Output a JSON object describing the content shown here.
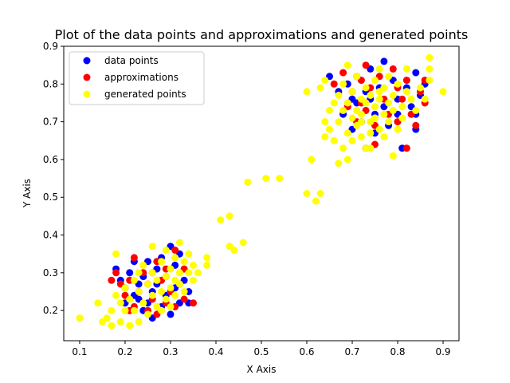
{
  "chart_data": {
    "type": "scatter",
    "title": "Plot of the data points and approximations and generated points",
    "xlabel": "X Axis",
    "ylabel": "Y Axis",
    "xlim": [
      0.065,
      0.935
    ],
    "ylim": [
      0.12,
      0.9
    ],
    "xticks": [
      0.1,
      0.2,
      0.3,
      0.4,
      0.5,
      0.6,
      0.7,
      0.8,
      0.9
    ],
    "yticks": [
      0.2,
      0.3,
      0.4,
      0.5,
      0.6,
      0.7,
      0.8,
      0.9
    ],
    "grid": false,
    "legend_position": "top-left",
    "series": [
      {
        "name": "data points",
        "color": "#0000ff",
        "points": [
          [
            0.18,
            0.31
          ],
          [
            0.19,
            0.28
          ],
          [
            0.2,
            0.26
          ],
          [
            0.21,
            0.3
          ],
          [
            0.22,
            0.24
          ],
          [
            0.22,
            0.33
          ],
          [
            0.23,
            0.27
          ],
          [
            0.24,
            0.2
          ],
          [
            0.24,
            0.29
          ],
          [
            0.25,
            0.33
          ],
          [
            0.25,
            0.22
          ],
          [
            0.26,
            0.25
          ],
          [
            0.26,
            0.18
          ],
          [
            0.27,
            0.31
          ],
          [
            0.27,
            0.27
          ],
          [
            0.28,
            0.21
          ],
          [
            0.28,
            0.34
          ],
          [
            0.29,
            0.24
          ],
          [
            0.29,
            0.29
          ],
          [
            0.3,
            0.37
          ],
          [
            0.3,
            0.19
          ],
          [
            0.31,
            0.26
          ],
          [
            0.31,
            0.32
          ],
          [
            0.32,
            0.22
          ],
          [
            0.32,
            0.35
          ],
          [
            0.33,
            0.28
          ],
          [
            0.34,
            0.25
          ],
          [
            0.34,
            0.22
          ],
          [
            0.2,
            0.22
          ],
          [
            0.23,
            0.23
          ],
          [
            0.65,
            0.82
          ],
          [
            0.67,
            0.78
          ],
          [
            0.68,
            0.72
          ],
          [
            0.69,
            0.8
          ],
          [
            0.7,
            0.68
          ],
          [
            0.71,
            0.75
          ],
          [
            0.71,
            0.82
          ],
          [
            0.72,
            0.7
          ],
          [
            0.73,
            0.78
          ],
          [
            0.73,
            0.63
          ],
          [
            0.74,
            0.84
          ],
          [
            0.75,
            0.72
          ],
          [
            0.75,
            0.67
          ],
          [
            0.76,
            0.79
          ],
          [
            0.77,
            0.86
          ],
          [
            0.77,
            0.74
          ],
          [
            0.78,
            0.69
          ],
          [
            0.79,
            0.81
          ],
          [
            0.8,
            0.76
          ],
          [
            0.8,
            0.72
          ],
          [
            0.81,
            0.63
          ],
          [
            0.82,
            0.79
          ],
          [
            0.83,
            0.74
          ],
          [
            0.84,
            0.83
          ],
          [
            0.84,
            0.68
          ],
          [
            0.85,
            0.77
          ],
          [
            0.84,
            0.72
          ],
          [
            0.86,
            0.8
          ],
          [
            0.74,
            0.76
          ],
          [
            0.7,
            0.76
          ]
        ]
      },
      {
        "name": "approximations",
        "color": "#ff0000",
        "points": [
          [
            0.17,
            0.28
          ],
          [
            0.18,
            0.3
          ],
          [
            0.19,
            0.27
          ],
          [
            0.2,
            0.24
          ],
          [
            0.21,
            0.28
          ],
          [
            0.22,
            0.21
          ],
          [
            0.22,
            0.34
          ],
          [
            0.23,
            0.25
          ],
          [
            0.24,
            0.3
          ],
          [
            0.25,
            0.2
          ],
          [
            0.25,
            0.27
          ],
          [
            0.26,
            0.23
          ],
          [
            0.27,
            0.33
          ],
          [
            0.27,
            0.19
          ],
          [
            0.28,
            0.28
          ],
          [
            0.29,
            0.22
          ],
          [
            0.29,
            0.31
          ],
          [
            0.3,
            0.25
          ],
          [
            0.31,
            0.36
          ],
          [
            0.31,
            0.21
          ],
          [
            0.32,
            0.27
          ],
          [
            0.33,
            0.23
          ],
          [
            0.33,
            0.31
          ],
          [
            0.35,
            0.22
          ],
          [
            0.21,
            0.2
          ],
          [
            0.26,
            0.3
          ],
          [
            0.66,
            0.8
          ],
          [
            0.68,
            0.83
          ],
          [
            0.69,
            0.74
          ],
          [
            0.7,
            0.78
          ],
          [
            0.71,
            0.7
          ],
          [
            0.72,
            0.81
          ],
          [
            0.73,
            0.85
          ],
          [
            0.73,
            0.73
          ],
          [
            0.74,
            0.79
          ],
          [
            0.75,
            0.64
          ],
          [
            0.75,
            0.69
          ],
          [
            0.76,
            0.82
          ],
          [
            0.77,
            0.76
          ],
          [
            0.78,
            0.72
          ],
          [
            0.79,
            0.84
          ],
          [
            0.8,
            0.79
          ],
          [
            0.8,
            0.7
          ],
          [
            0.81,
            0.76
          ],
          [
            0.82,
            0.63
          ],
          [
            0.82,
            0.81
          ],
          [
            0.83,
            0.72
          ],
          [
            0.84,
            0.69
          ],
          [
            0.85,
            0.78
          ],
          [
            0.86,
            0.75
          ],
          [
            0.86,
            0.81
          ],
          [
            0.72,
            0.75
          ]
        ]
      },
      {
        "name": "generated points",
        "color": "#ffff00",
        "points": [
          [
            0.1,
            0.18
          ],
          [
            0.14,
            0.22
          ],
          [
            0.15,
            0.17
          ],
          [
            0.16,
            0.18
          ],
          [
            0.17,
            0.16
          ],
          [
            0.17,
            0.2
          ],
          [
            0.18,
            0.24
          ],
          [
            0.18,
            0.35
          ],
          [
            0.19,
            0.22
          ],
          [
            0.19,
            0.17
          ],
          [
            0.2,
            0.26
          ],
          [
            0.2,
            0.2
          ],
          [
            0.21,
            0.16
          ],
          [
            0.21,
            0.23
          ],
          [
            0.22,
            0.28
          ],
          [
            0.22,
            0.2
          ],
          [
            0.23,
            0.17
          ],
          [
            0.23,
            0.3
          ],
          [
            0.23,
            0.25
          ],
          [
            0.24,
            0.22
          ],
          [
            0.24,
            0.32
          ],
          [
            0.25,
            0.27
          ],
          [
            0.25,
            0.19
          ],
          [
            0.26,
            0.24
          ],
          [
            0.26,
            0.37
          ],
          [
            0.26,
            0.3
          ],
          [
            0.27,
            0.21
          ],
          [
            0.27,
            0.28
          ],
          [
            0.28,
            0.25
          ],
          [
            0.28,
            0.33
          ],
          [
            0.28,
            0.2
          ],
          [
            0.29,
            0.29
          ],
          [
            0.29,
            0.23
          ],
          [
            0.29,
            0.36
          ],
          [
            0.3,
            0.26
          ],
          [
            0.3,
            0.31
          ],
          [
            0.3,
            0.21
          ],
          [
            0.31,
            0.28
          ],
          [
            0.31,
            0.34
          ],
          [
            0.31,
            0.24
          ],
          [
            0.32,
            0.38
          ],
          [
            0.32,
            0.3
          ],
          [
            0.32,
            0.27
          ],
          [
            0.33,
            0.33
          ],
          [
            0.33,
            0.25
          ],
          [
            0.34,
            0.3
          ],
          [
            0.34,
            0.35
          ],
          [
            0.35,
            0.28
          ],
          [
            0.35,
            0.32
          ],
          [
            0.36,
            0.3
          ],
          [
            0.38,
            0.34
          ],
          [
            0.38,
            0.32
          ],
          [
            0.41,
            0.44
          ],
          [
            0.43,
            0.45
          ],
          [
            0.43,
            0.37
          ],
          [
            0.44,
            0.36
          ],
          [
            0.46,
            0.38
          ],
          [
            0.47,
            0.54
          ],
          [
            0.51,
            0.55
          ],
          [
            0.54,
            0.55
          ],
          [
            0.6,
            0.51
          ],
          [
            0.6,
            0.78
          ],
          [
            0.61,
            0.6
          ],
          [
            0.62,
            0.49
          ],
          [
            0.63,
            0.51
          ],
          [
            0.63,
            0.79
          ],
          [
            0.64,
            0.7
          ],
          [
            0.64,
            0.66
          ],
          [
            0.64,
            0.81
          ],
          [
            0.65,
            0.73
          ],
          [
            0.65,
            0.68
          ],
          [
            0.66,
            0.75
          ],
          [
            0.66,
            0.65
          ],
          [
            0.67,
            0.59
          ],
          [
            0.67,
            0.7
          ],
          [
            0.67,
            0.77
          ],
          [
            0.68,
            0.63
          ],
          [
            0.68,
            0.73
          ],
          [
            0.68,
            0.8
          ],
          [
            0.69,
            0.67
          ],
          [
            0.69,
            0.75
          ],
          [
            0.69,
            0.6
          ],
          [
            0.7,
            0.71
          ],
          [
            0.7,
            0.78
          ],
          [
            0.7,
            0.65
          ],
          [
            0.71,
            0.73
          ],
          [
            0.71,
            0.69
          ],
          [
            0.71,
            0.82
          ],
          [
            0.72,
            0.76
          ],
          [
            0.72,
            0.66
          ],
          [
            0.72,
            0.72
          ],
          [
            0.73,
            0.79
          ],
          [
            0.73,
            0.63
          ],
          [
            0.73,
            0.75
          ],
          [
            0.74,
            0.7
          ],
          [
            0.74,
            0.77
          ],
          [
            0.74,
            0.67
          ],
          [
            0.75,
            0.74
          ],
          [
            0.75,
            0.81
          ],
          [
            0.75,
            0.71
          ],
          [
            0.76,
            0.76
          ],
          [
            0.76,
            0.68
          ],
          [
            0.76,
            0.84
          ],
          [
            0.77,
            0.72
          ],
          [
            0.77,
            0.79
          ],
          [
            0.77,
            0.66
          ],
          [
            0.78,
            0.75
          ],
          [
            0.78,
            0.7
          ],
          [
            0.78,
            0.82
          ],
          [
            0.79,
            0.73
          ],
          [
            0.79,
            0.77
          ],
          [
            0.8,
            0.68
          ],
          [
            0.8,
            0.8
          ],
          [
            0.81,
            0.74
          ],
          [
            0.81,
            0.71
          ],
          [
            0.82,
            0.78
          ],
          [
            0.82,
            0.84
          ],
          [
            0.83,
            0.76
          ],
          [
            0.84,
            0.73
          ],
          [
            0.85,
            0.79
          ],
          [
            0.86,
            0.76
          ],
          [
            0.87,
            0.81
          ],
          [
            0.87,
            0.87
          ],
          [
            0.87,
            0.84
          ],
          [
            0.9,
            0.78
          ],
          [
            0.79,
            0.61
          ],
          [
            0.74,
            0.63
          ],
          [
            0.69,
            0.85
          ],
          [
            0.76,
            0.78
          ],
          [
            0.72,
            0.7
          ]
        ]
      }
    ]
  }
}
